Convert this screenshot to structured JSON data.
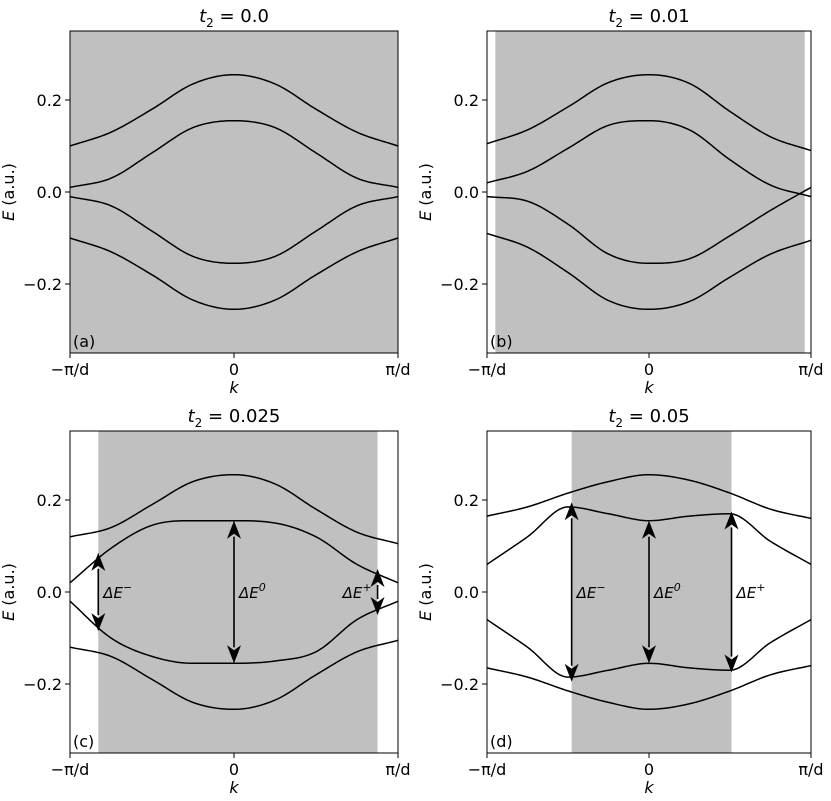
{
  "chart_data": [
    {
      "type": "line",
      "panel_label": "(a)",
      "title": "t₂ = 0.0",
      "title_parts": {
        "base": "t",
        "sub": "2",
        "rest": " = 0.0"
      },
      "xlabel": "k",
      "ylabel": "E (a.u.)",
      "xlim": [
        -3.1416,
        3.1416
      ],
      "ylim": [
        -0.35,
        0.35
      ],
      "xticks": [
        "−π/d",
        "0",
        "π/d"
      ],
      "yticks": [
        "−0.2",
        "0.0",
        "0.2"
      ],
      "shaded_region": [
        -3.1416,
        3.1416
      ],
      "bands": {
        "k": [
          -3.1416,
          -2.3562,
          -1.5708,
          -0.7854,
          0,
          0.7854,
          1.5708,
          2.3562,
          3.1416
        ],
        "E": [
          [
            0.1,
            0.13,
            0.18,
            0.235,
            0.255,
            0.235,
            0.18,
            0.13,
            0.1
          ],
          [
            0.01,
            0.03,
            0.085,
            0.14,
            0.155,
            0.14,
            0.085,
            0.03,
            0.01
          ],
          [
            -0.01,
            -0.03,
            -0.085,
            -0.14,
            -0.155,
            -0.14,
            -0.085,
            -0.03,
            -0.01
          ],
          [
            -0.1,
            -0.13,
            -0.18,
            -0.235,
            -0.255,
            -0.235,
            -0.18,
            -0.13,
            -0.1
          ]
        ]
      },
      "annotations": []
    },
    {
      "type": "line",
      "panel_label": "(b)",
      "title": "t₂ = 0.01",
      "title_parts": {
        "base": "t",
        "sub": "2",
        "rest": " = 0.01"
      },
      "xlabel": "k",
      "ylabel": "E (a.u.)",
      "xlim": [
        -3.1416,
        3.1416
      ],
      "ylim": [
        -0.35,
        0.35
      ],
      "xticks": [
        "−π/d",
        "0",
        "π/d"
      ],
      "yticks": [
        "−0.2",
        "0.0",
        "0.2"
      ],
      "shaded_region": [
        -2.98,
        3.02
      ],
      "bands": {
        "k": [
          -3.1416,
          -2.3562,
          -1.5708,
          -0.7854,
          0,
          0.7854,
          1.5708,
          2.3562,
          3.1416
        ],
        "E": [
          [
            0.105,
            0.135,
            0.185,
            0.238,
            0.255,
            0.236,
            0.175,
            0.12,
            0.09
          ],
          [
            0.02,
            0.045,
            0.095,
            0.145,
            0.155,
            0.135,
            0.07,
            0.015,
            -0.01
          ],
          [
            -0.01,
            -0.02,
            -0.07,
            -0.135,
            -0.155,
            -0.145,
            -0.095,
            -0.04,
            0.01
          ],
          [
            -0.09,
            -0.12,
            -0.175,
            -0.236,
            -0.255,
            -0.238,
            -0.185,
            -0.135,
            -0.105
          ]
        ]
      },
      "annotations": []
    },
    {
      "type": "line",
      "panel_label": "(c)",
      "title": "t₂ = 0.025",
      "title_parts": {
        "base": "t",
        "sub": "2",
        "rest": " = 0.025"
      },
      "xlabel": "k",
      "ylabel": "E (a.u.)",
      "xlim": [
        -3.1416,
        3.1416
      ],
      "ylim": [
        -0.35,
        0.35
      ],
      "xticks": [
        "−π/d",
        "0",
        "π/d"
      ],
      "yticks": [
        "−0.2",
        "0.0",
        "0.2"
      ],
      "shaded_region": [
        -2.6,
        2.75
      ],
      "bands": {
        "k": [
          -3.1416,
          -2.3562,
          -1.5708,
          -0.7854,
          0,
          0.7854,
          1.5708,
          2.3562,
          3.1416
        ],
        "E": [
          [
            0.12,
            0.14,
            0.19,
            0.24,
            0.255,
            0.235,
            0.18,
            0.13,
            0.105
          ],
          [
            0.02,
            0.095,
            0.145,
            0.155,
            0.155,
            0.15,
            0.12,
            0.06,
            0.02
          ],
          [
            -0.02,
            -0.1,
            -0.14,
            -0.155,
            -0.155,
            -0.15,
            -0.13,
            -0.06,
            -0.02
          ],
          [
            -0.12,
            -0.14,
            -0.19,
            -0.24,
            -0.255,
            -0.235,
            -0.18,
            -0.13,
            -0.105
          ]
        ]
      },
      "annotations": [
        {
          "label": "ΔE⁻",
          "label_base": "ΔE",
          "label_sup": "−",
          "k": -2.6,
          "E_top": 0.085,
          "E_bottom": -0.085
        },
        {
          "label": "ΔE⁰",
          "label_base": "ΔE",
          "label_sup": "0",
          "k": 0.0,
          "E_top": 0.155,
          "E_bottom": -0.155
        },
        {
          "label": "ΔE⁺",
          "label_base": "ΔE",
          "label_sup": "+",
          "k": 2.75,
          "E_top": 0.05,
          "E_bottom": -0.05
        }
      ]
    },
    {
      "type": "line",
      "panel_label": "(d)",
      "title": "t₂ = 0.05",
      "title_parts": {
        "base": "t",
        "sub": "2",
        "rest": " = 0.05"
      },
      "xlabel": "k",
      "ylabel": "E (a.u.)",
      "xlim": [
        -3.1416,
        3.1416
      ],
      "ylim": [
        -0.35,
        0.35
      ],
      "xticks": [
        "−π/d",
        "0",
        "π/d"
      ],
      "yticks": [
        "−0.2",
        "0.0",
        "0.2"
      ],
      "shaded_region": [
        -1.5,
        1.6
      ],
      "bands": {
        "k": [
          -3.1416,
          -2.3562,
          -1.5708,
          -0.7854,
          0,
          0.7854,
          1.5708,
          2.3562,
          3.1416
        ],
        "E": [
          [
            0.165,
            0.185,
            0.215,
            0.24,
            0.255,
            0.243,
            0.215,
            0.18,
            0.16
          ],
          [
            0.06,
            0.12,
            0.185,
            0.17,
            0.155,
            0.165,
            0.17,
            0.11,
            0.06
          ],
          [
            -0.06,
            -0.12,
            -0.185,
            -0.17,
            -0.155,
            -0.165,
            -0.17,
            -0.11,
            -0.06
          ],
          [
            -0.165,
            -0.185,
            -0.215,
            -0.24,
            -0.255,
            -0.243,
            -0.215,
            -0.18,
            -0.16
          ]
        ]
      },
      "annotations": [
        {
          "label": "ΔE⁻",
          "label_base": "ΔE",
          "label_sup": "−",
          "k": -1.5,
          "E_top": 0.195,
          "E_bottom": -0.195
        },
        {
          "label": "ΔE⁰",
          "label_base": "ΔE",
          "label_sup": "0",
          "k": 0.0,
          "E_top": 0.155,
          "E_bottom": -0.155
        },
        {
          "label": "ΔE⁺",
          "label_base": "ΔE",
          "label_sup": "+",
          "k": 1.6,
          "E_top": 0.175,
          "E_bottom": -0.175
        }
      ]
    }
  ],
  "colors": {
    "shade": "#c0c0c0",
    "line": "#000000",
    "frame": "#000000",
    "background": "#ffffff"
  }
}
